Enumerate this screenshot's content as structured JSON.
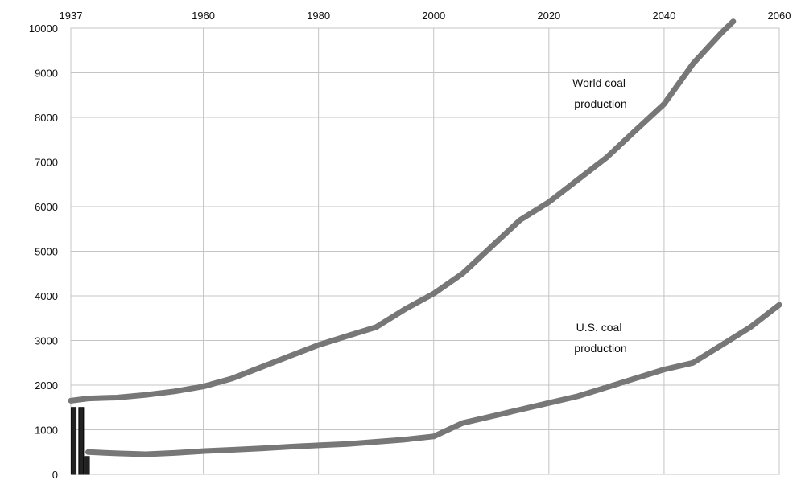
{
  "chart_data": {
    "type": "line",
    "title": "",
    "xlabel": "",
    "ylabel": "",
    "x_ticks": [
      1937,
      1960,
      1980,
      2000,
      2020,
      2040,
      2060
    ],
    "y_ticks": [
      0,
      1000,
      2000,
      3000,
      4000,
      5000,
      6000,
      7000,
      8000,
      9000,
      10000
    ],
    "xlim": [
      1937,
      2060
    ],
    "ylim": [
      0,
      10000
    ],
    "grid": true,
    "legend": "none",
    "series": [
      {
        "label": "World coal\nproduction",
        "color": "#777777",
        "x": [
          1937,
          1940,
          1945,
          1950,
          1955,
          1960,
          1965,
          1970,
          1975,
          1980,
          1985,
          1990,
          1995,
          2000,
          2005,
          2010,
          2015,
          2020,
          2025,
          2030,
          2035,
          2040,
          2045,
          2050,
          2052
        ],
        "y": [
          1650,
          1700,
          1720,
          1780,
          1860,
          1970,
          2150,
          2400,
          2650,
          2900,
          3100,
          3300,
          3700,
          4050,
          4500,
          5100,
          5700,
          6100,
          6600,
          7100,
          7700,
          8300,
          9200,
          9900,
          10150
        ]
      },
      {
        "label": "U.S. coal\nproduction",
        "color": "#777777",
        "x": [
          1940,
          1945,
          1950,
          1955,
          1960,
          1965,
          1970,
          1975,
          1980,
          1985,
          1990,
          1995,
          2000,
          2005,
          2010,
          2015,
          2020,
          2025,
          2030,
          2035,
          2040,
          2045,
          2050,
          2055,
          2060
        ],
        "y": [
          500,
          470,
          450,
          480,
          520,
          550,
          580,
          620,
          650,
          680,
          730,
          780,
          850,
          1150,
          1300,
          1450,
          1600,
          1750,
          1950,
          2150,
          2350,
          2500,
          2900,
          3300,
          3800
        ]
      }
    ],
    "bars": [
      {
        "x": 1937.5,
        "y": 1500
      },
      {
        "x": 1938.8,
        "y": 1500
      },
      {
        "x": 1939.8,
        "y": 400
      }
    ]
  }
}
